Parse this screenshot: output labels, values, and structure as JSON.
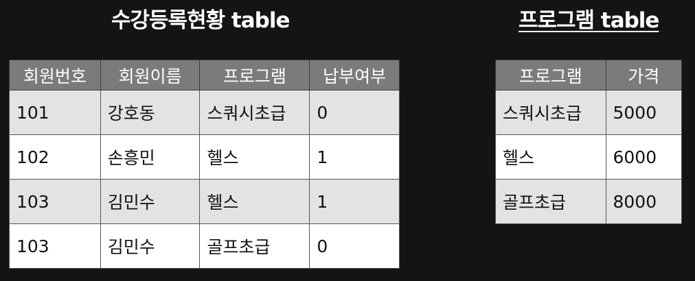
{
  "left_table": {
    "title": "수강등록현황 table",
    "columns": [
      "회원번호",
      "회원이름",
      "프로그램",
      "납부여부"
    ],
    "rows": [
      [
        "101",
        "강호동",
        "스쿼시초급",
        "0"
      ],
      [
        "102",
        "손흥민",
        "헬스",
        "1"
      ],
      [
        "103",
        "김민수",
        "헬스",
        "1"
      ],
      [
        "103",
        "김민수",
        "골프초급",
        "0"
      ]
    ]
  },
  "right_table": {
    "title": "프로그램 table",
    "columns": [
      "프로그램",
      "가격"
    ],
    "rows": [
      [
        "스쿼시초급",
        "5000"
      ],
      [
        "헬스",
        "6000"
      ],
      [
        "골프초급",
        "8000"
      ]
    ]
  }
}
